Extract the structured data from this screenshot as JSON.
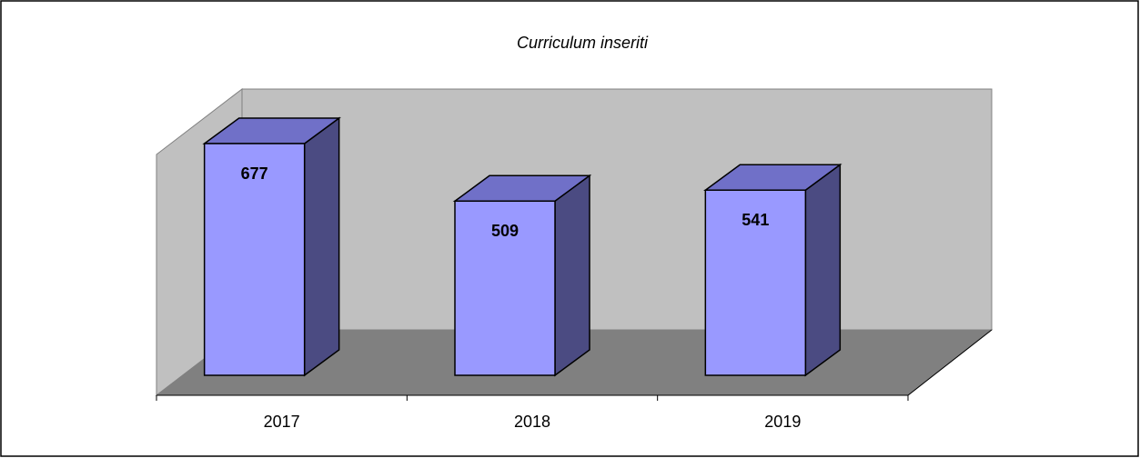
{
  "chart_data": {
    "type": "bar3d",
    "title": "Curriculum inseriti",
    "categories": [
      "2017",
      "2018",
      "2019"
    ],
    "values": [
      677,
      509,
      541
    ],
    "color": "#9999ff"
  }
}
